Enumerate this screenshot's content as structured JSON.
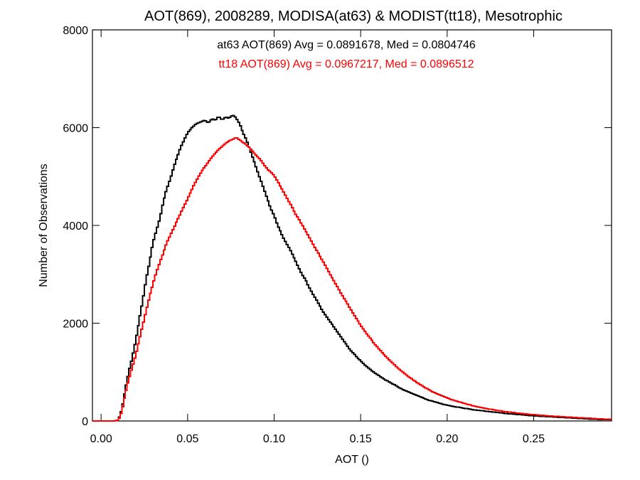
{
  "chart_data": {
    "type": "step",
    "title": "AOT(869), 2008289, MODISA(at63) & MODIST(tt18), Mesotrophic",
    "xlabel": "AOT ()",
    "ylabel": "Number of Observations",
    "xlim": [
      -0.005,
      0.295
    ],
    "ylim": [
      0,
      8000
    ],
    "x_ticks": [
      0.0,
      0.05,
      0.1,
      0.15,
      0.2,
      0.25
    ],
    "x_tick_labels": [
      "0.00",
      "0.05",
      "0.10",
      "0.15",
      "0.20",
      "0.25"
    ],
    "y_ticks": [
      0,
      2000,
      4000,
      6000,
      8000
    ],
    "y_tick_labels": [
      "0",
      "2000",
      "4000",
      "6000",
      "8000"
    ],
    "grid": false,
    "annotations": [
      {
        "text": "at63 AOT(869) Avg = 0.0891678, Med = 0.0804746",
        "color": "#000000"
      },
      {
        "text": "tt18 AOT(869) Avg = 0.0967217, Med = 0.0896512",
        "color": "#ff0000"
      }
    ],
    "bin_width": 0.001,
    "series": [
      {
        "color": "#000000",
        "points": [
          [
            -0.005,
            0
          ],
          [
            0.008,
            0
          ],
          [
            0.01,
            20
          ],
          [
            0.012,
            250
          ],
          [
            0.014,
            650
          ],
          [
            0.016,
            1000
          ],
          [
            0.018,
            1300
          ],
          [
            0.02,
            1650
          ],
          [
            0.022,
            2050
          ],
          [
            0.024,
            2450
          ],
          [
            0.026,
            2900
          ],
          [
            0.028,
            3250
          ],
          [
            0.03,
            3650
          ],
          [
            0.032,
            3900
          ],
          [
            0.034,
            4150
          ],
          [
            0.036,
            4500
          ],
          [
            0.038,
            4750
          ],
          [
            0.04,
            4950
          ],
          [
            0.042,
            5200
          ],
          [
            0.044,
            5400
          ],
          [
            0.046,
            5600
          ],
          [
            0.048,
            5750
          ],
          [
            0.05,
            5900
          ],
          [
            0.052,
            5980
          ],
          [
            0.054,
            6050
          ],
          [
            0.056,
            6100
          ],
          [
            0.058,
            6120
          ],
          [
            0.06,
            6150
          ],
          [
            0.062,
            6100
          ],
          [
            0.064,
            6180
          ],
          [
            0.066,
            6150
          ],
          [
            0.068,
            6230
          ],
          [
            0.07,
            6160
          ],
          [
            0.072,
            6220
          ],
          [
            0.074,
            6190
          ],
          [
            0.076,
            6260
          ],
          [
            0.078,
            6200
          ],
          [
            0.08,
            6080
          ],
          [
            0.082,
            5900
          ],
          [
            0.084,
            5750
          ],
          [
            0.086,
            5550
          ],
          [
            0.088,
            5350
          ],
          [
            0.09,
            5150
          ],
          [
            0.092,
            4950
          ],
          [
            0.094,
            4750
          ],
          [
            0.096,
            4550
          ],
          [
            0.098,
            4350
          ],
          [
            0.1,
            4200
          ],
          [
            0.102,
            4000
          ],
          [
            0.104,
            3850
          ],
          [
            0.106,
            3700
          ],
          [
            0.108,
            3580
          ],
          [
            0.11,
            3450
          ],
          [
            0.112,
            3300
          ],
          [
            0.114,
            3150
          ],
          [
            0.116,
            3000
          ],
          [
            0.118,
            2900
          ],
          [
            0.12,
            2750
          ],
          [
            0.122,
            2620
          ],
          [
            0.124,
            2500
          ],
          [
            0.126,
            2380
          ],
          [
            0.128,
            2250
          ],
          [
            0.13,
            2150
          ],
          [
            0.132,
            2050
          ],
          [
            0.134,
            1950
          ],
          [
            0.136,
            1850
          ],
          [
            0.138,
            1750
          ],
          [
            0.14,
            1650
          ],
          [
            0.142,
            1550
          ],
          [
            0.144,
            1450
          ],
          [
            0.146,
            1380
          ],
          [
            0.148,
            1300
          ],
          [
            0.15,
            1230
          ],
          [
            0.152,
            1160
          ],
          [
            0.154,
            1100
          ],
          [
            0.156,
            1040
          ],
          [
            0.158,
            990
          ],
          [
            0.16,
            940
          ],
          [
            0.162,
            890
          ],
          [
            0.164,
            850
          ],
          [
            0.166,
            810
          ],
          [
            0.168,
            770
          ],
          [
            0.17,
            730
          ],
          [
            0.172,
            690
          ],
          [
            0.174,
            650
          ],
          [
            0.176,
            620
          ],
          [
            0.178,
            590
          ],
          [
            0.18,
            560
          ],
          [
            0.182,
            530
          ],
          [
            0.184,
            500
          ],
          [
            0.186,
            470
          ],
          [
            0.188,
            440
          ],
          [
            0.19,
            420
          ],
          [
            0.192,
            400
          ],
          [
            0.194,
            380
          ],
          [
            0.196,
            360
          ],
          [
            0.198,
            340
          ],
          [
            0.2,
            320
          ],
          [
            0.205,
            290
          ],
          [
            0.21,
            260
          ],
          [
            0.215,
            230
          ],
          [
            0.22,
            210
          ],
          [
            0.225,
            190
          ],
          [
            0.23,
            170
          ],
          [
            0.235,
            150
          ],
          [
            0.24,
            135
          ],
          [
            0.245,
            120
          ],
          [
            0.25,
            105
          ],
          [
            0.255,
            95
          ],
          [
            0.26,
            85
          ],
          [
            0.265,
            75
          ],
          [
            0.27,
            65
          ],
          [
            0.275,
            55
          ],
          [
            0.28,
            45
          ],
          [
            0.285,
            35
          ],
          [
            0.29,
            30
          ],
          [
            0.295,
            30
          ]
        ]
      },
      {
        "color": "#ff0000",
        "points": [
          [
            -0.005,
            0
          ],
          [
            0.008,
            0
          ],
          [
            0.01,
            15
          ],
          [
            0.012,
            200
          ],
          [
            0.014,
            550
          ],
          [
            0.016,
            850
          ],
          [
            0.018,
            1100
          ],
          [
            0.02,
            1350
          ],
          [
            0.022,
            1650
          ],
          [
            0.024,
            1950
          ],
          [
            0.026,
            2250
          ],
          [
            0.028,
            2550
          ],
          [
            0.03,
            2800
          ],
          [
            0.032,
            3050
          ],
          [
            0.034,
            3250
          ],
          [
            0.036,
            3450
          ],
          [
            0.038,
            3650
          ],
          [
            0.04,
            3800
          ],
          [
            0.042,
            3950
          ],
          [
            0.044,
            4100
          ],
          [
            0.046,
            4250
          ],
          [
            0.048,
            4400
          ],
          [
            0.05,
            4550
          ],
          [
            0.052,
            4700
          ],
          [
            0.054,
            4850
          ],
          [
            0.056,
            4980
          ],
          [
            0.058,
            5100
          ],
          [
            0.06,
            5200
          ],
          [
            0.062,
            5300
          ],
          [
            0.064,
            5400
          ],
          [
            0.066,
            5480
          ],
          [
            0.068,
            5550
          ],
          [
            0.07,
            5620
          ],
          [
            0.072,
            5680
          ],
          [
            0.074,
            5730
          ],
          [
            0.076,
            5760
          ],
          [
            0.078,
            5800
          ],
          [
            0.08,
            5750
          ],
          [
            0.082,
            5700
          ],
          [
            0.084,
            5650
          ],
          [
            0.086,
            5580
          ],
          [
            0.088,
            5500
          ],
          [
            0.09,
            5420
          ],
          [
            0.092,
            5350
          ],
          [
            0.094,
            5250
          ],
          [
            0.096,
            5150
          ],
          [
            0.098,
            5100
          ],
          [
            0.1,
            5020
          ],
          [
            0.102,
            4900
          ],
          [
            0.104,
            4780
          ],
          [
            0.106,
            4650
          ],
          [
            0.108,
            4520
          ],
          [
            0.11,
            4400
          ],
          [
            0.112,
            4250
          ],
          [
            0.114,
            4150
          ],
          [
            0.116,
            4020
          ],
          [
            0.118,
            3900
          ],
          [
            0.12,
            3780
          ],
          [
            0.122,
            3650
          ],
          [
            0.124,
            3520
          ],
          [
            0.126,
            3400
          ],
          [
            0.128,
            3280
          ],
          [
            0.13,
            3150
          ],
          [
            0.132,
            3020
          ],
          [
            0.134,
            2900
          ],
          [
            0.136,
            2780
          ],
          [
            0.138,
            2650
          ],
          [
            0.14,
            2530
          ],
          [
            0.142,
            2420
          ],
          [
            0.144,
            2300
          ],
          [
            0.146,
            2180
          ],
          [
            0.148,
            2070
          ],
          [
            0.15,
            1960
          ],
          [
            0.152,
            1860
          ],
          [
            0.154,
            1760
          ],
          [
            0.156,
            1670
          ],
          [
            0.158,
            1580
          ],
          [
            0.16,
            1500
          ],
          [
            0.162,
            1420
          ],
          [
            0.164,
            1340
          ],
          [
            0.166,
            1270
          ],
          [
            0.168,
            1200
          ],
          [
            0.17,
            1130
          ],
          [
            0.172,
            1070
          ],
          [
            0.174,
            1010
          ],
          [
            0.176,
            950
          ],
          [
            0.178,
            900
          ],
          [
            0.18,
            850
          ],
          [
            0.182,
            800
          ],
          [
            0.184,
            750
          ],
          [
            0.186,
            710
          ],
          [
            0.188,
            670
          ],
          [
            0.19,
            630
          ],
          [
            0.192,
            590
          ],
          [
            0.194,
            560
          ],
          [
            0.196,
            530
          ],
          [
            0.198,
            500
          ],
          [
            0.2,
            470
          ],
          [
            0.205,
            410
          ],
          [
            0.21,
            360
          ],
          [
            0.215,
            310
          ],
          [
            0.22,
            270
          ],
          [
            0.225,
            240
          ],
          [
            0.23,
            210
          ],
          [
            0.235,
            185
          ],
          [
            0.24,
            165
          ],
          [
            0.245,
            145
          ],
          [
            0.25,
            130
          ],
          [
            0.255,
            115
          ],
          [
            0.26,
            100
          ],
          [
            0.265,
            90
          ],
          [
            0.27,
            80
          ],
          [
            0.275,
            70
          ],
          [
            0.28,
            60
          ],
          [
            0.285,
            50
          ],
          [
            0.29,
            40
          ],
          [
            0.295,
            35
          ]
        ]
      }
    ]
  }
}
